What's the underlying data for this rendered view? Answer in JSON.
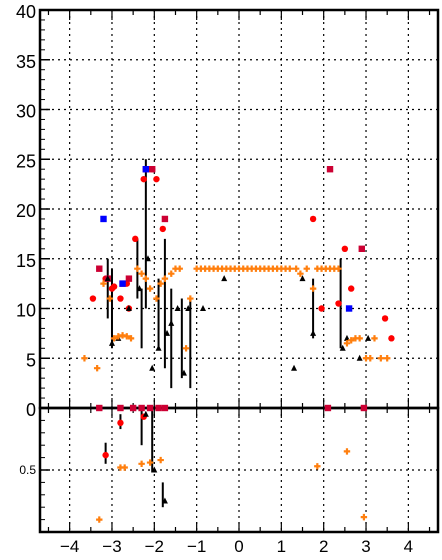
{
  "chart_data": [
    {
      "type": "scatter",
      "panel": "upper",
      "xlim": [
        -4.7,
        4.7
      ],
      "ylim": [
        0,
        40
      ],
      "grid": true,
      "x_ticks": [
        "−4",
        "−3",
        "−2",
        "−1",
        "0",
        "1",
        "2",
        "3",
        "4"
      ],
      "x_tick_values": [
        -4,
        -3,
        -2,
        -1,
        0,
        1,
        2,
        3,
        4
      ],
      "y_ticks": [
        "0",
        "5",
        "10",
        "15",
        "20",
        "25",
        "30",
        "35",
        "40"
      ],
      "y_tick_values": [
        0,
        5,
        10,
        15,
        20,
        25,
        30,
        35,
        40
      ],
      "series": [
        {
          "marker": "circle",
          "color": "#ff0000",
          "points": [
            [
              -3.45,
              11
            ],
            [
              -3.15,
              13
            ],
            [
              -3.0,
              12
            ],
            [
              -2.95,
              12.2
            ],
            [
              -2.8,
              11
            ],
            [
              -2.65,
              12.5
            ],
            [
              -2.6,
              10
            ],
            [
              -2.45,
              17
            ],
            [
              -2.25,
              23
            ],
            [
              -2.05,
              24
            ],
            [
              -1.95,
              23
            ],
            [
              -1.8,
              18
            ],
            [
              1.75,
              19
            ],
            [
              1.95,
              10
            ],
            [
              2.35,
              10.5
            ],
            [
              2.5,
              16
            ],
            [
              2.65,
              12
            ],
            [
              3.45,
              9
            ],
            [
              3.6,
              7
            ]
          ]
        },
        {
          "marker": "square",
          "color": "#cc0033",
          "points": [
            [
              -3.3,
              14
            ],
            [
              -3.1,
              13
            ],
            [
              -2.75,
              12.5
            ],
            [
              -2.6,
              13
            ],
            [
              -2.2,
              24
            ],
            [
              -2.05,
              24
            ],
            [
              -1.75,
              19
            ],
            [
              2.15,
              24
            ],
            [
              2.9,
              16
            ]
          ]
        },
        {
          "marker": "square",
          "color": "#0000ff",
          "points": [
            [
              -3.2,
              19
            ],
            [
              -2.75,
              12.5
            ],
            [
              -2.2,
              24
            ],
            [
              2.6,
              10
            ]
          ]
        },
        {
          "marker": "triangle",
          "color": "#000000",
          "points": [
            [
              -3.1,
              13
            ],
            [
              -3.0,
              6.5
            ],
            [
              -2.85,
              7
            ],
            [
              -2.6,
              10
            ],
            [
              -2.35,
              12
            ],
            [
              -2.15,
              15
            ],
            [
              -2.05,
              4
            ],
            [
              -1.9,
              6
            ],
            [
              -1.7,
              7.5
            ],
            [
              -1.6,
              8.5
            ],
            [
              -1.45,
              10
            ],
            [
              -1.3,
              3.5
            ],
            [
              -1.2,
              10
            ],
            [
              -0.85,
              10
            ],
            [
              -0.35,
              13
            ],
            [
              1.3,
              4
            ],
            [
              1.5,
              13
            ],
            [
              1.75,
              7.5
            ],
            [
              2.45,
              6
            ],
            [
              2.55,
              7
            ],
            [
              2.85,
              5
            ],
            [
              3.05,
              7
            ]
          ]
        },
        {
          "marker": "cross",
          "color": "#ff7f0e",
          "points": [
            [
              -3.65,
              5
            ],
            [
              -3.35,
              4
            ],
            [
              -3.2,
              12.5
            ],
            [
              -3.05,
              11
            ],
            [
              -2.95,
              7
            ],
            [
              -2.85,
              7.2
            ],
            [
              -2.75,
              7.3
            ],
            [
              -2.65,
              7.2
            ],
            [
              -2.55,
              7
            ],
            [
              -2.4,
              14
            ],
            [
              -2.3,
              13.5
            ],
            [
              -2.2,
              13
            ],
            [
              -2.1,
              12
            ],
            [
              -1.95,
              11
            ],
            [
              -1.85,
              12.5
            ],
            [
              -1.75,
              13
            ],
            [
              -1.6,
              13.5
            ],
            [
              -1.5,
              14
            ],
            [
              -1.4,
              14
            ],
            [
              -1.25,
              6
            ],
            [
              -1.15,
              11
            ],
            [
              -1.0,
              14
            ],
            [
              -0.9,
              14
            ],
            [
              -0.8,
              14
            ],
            [
              -0.7,
              14
            ],
            [
              -0.6,
              14
            ],
            [
              -0.5,
              14
            ],
            [
              -0.4,
              14
            ],
            [
              -0.3,
              14
            ],
            [
              -0.2,
              14
            ],
            [
              -0.1,
              14
            ],
            [
              0.0,
              14
            ],
            [
              0.1,
              14
            ],
            [
              0.2,
              14
            ],
            [
              0.3,
              14
            ],
            [
              0.4,
              14
            ],
            [
              0.5,
              14
            ],
            [
              0.6,
              14
            ],
            [
              0.7,
              14
            ],
            [
              0.8,
              14
            ],
            [
              0.9,
              14
            ],
            [
              1.0,
              14
            ],
            [
              1.1,
              14
            ],
            [
              1.2,
              14
            ],
            [
              1.35,
              14
            ],
            [
              1.45,
              13.5
            ],
            [
              1.6,
              14
            ],
            [
              1.75,
              12
            ],
            [
              1.85,
              14
            ],
            [
              1.95,
              14
            ],
            [
              2.05,
              14
            ],
            [
              2.15,
              14
            ],
            [
              2.25,
              14
            ],
            [
              2.35,
              14
            ],
            [
              2.55,
              6.5
            ],
            [
              2.65,
              6.8
            ],
            [
              2.75,
              7
            ],
            [
              2.85,
              7
            ],
            [
              3.0,
              5
            ],
            [
              3.1,
              5
            ],
            [
              3.2,
              7
            ],
            [
              3.35,
              5
            ],
            [
              3.5,
              5
            ]
          ]
        }
      ],
      "error_bars": [
        [
          -3.1,
          9,
          15
        ],
        [
          -3.0,
          6,
          14
        ],
        [
          -2.4,
          11,
          17
        ],
        [
          -2.3,
          6,
          12
        ],
        [
          -2.2,
          10,
          25
        ],
        [
          -1.9,
          6,
          13
        ],
        [
          -1.75,
          4,
          17
        ],
        [
          -1.6,
          2,
          12
        ],
        [
          -1.35,
          3,
          11
        ],
        [
          -1.15,
          2,
          11
        ],
        [
          1.75,
          7,
          13
        ],
        [
          2.4,
          6,
          15
        ]
      ]
    },
    {
      "type": "scatter",
      "panel": "lower",
      "xlim": [
        -4.7,
        4.7
      ],
      "ylim": [
        0,
        1
      ],
      "grid": true,
      "y_ticks": [
        "0.5"
      ],
      "y_tick_values": [
        0.5
      ],
      "series": [
        {
          "marker": "square",
          "color": "#cc0033",
          "points": [
            [
              -3.3,
              1.0
            ],
            [
              -2.8,
              1.0
            ],
            [
              -2.5,
              1.0
            ],
            [
              -2.3,
              1.0
            ],
            [
              -2.1,
              1.0
            ],
            [
              -1.9,
              1.0
            ],
            [
              -1.75,
              1.0
            ],
            [
              2.1,
              1.0
            ],
            [
              2.95,
              1.0
            ]
          ]
        },
        {
          "marker": "circle",
          "color": "#ff0000",
          "points": [
            [
              -3.15,
              0.62
            ],
            [
              -2.8,
              0.88
            ],
            [
              -2.25,
              0.93
            ]
          ]
        },
        {
          "marker": "triangle",
          "color": "#000000",
          "points": [
            [
              -2.2,
              0.95
            ],
            [
              -2.0,
              0.5
            ],
            [
              -1.75,
              0.25
            ]
          ]
        },
        {
          "marker": "cross",
          "color": "#ff7f0e",
          "points": [
            [
              -3.3,
              0.1
            ],
            [
              -2.8,
              0.52
            ],
            [
              -2.7,
              0.52
            ],
            [
              -2.3,
              0.55
            ],
            [
              -2.1,
              0.56
            ],
            [
              -1.85,
              0.58
            ],
            [
              1.85,
              0.53
            ],
            [
              2.55,
              0.65
            ],
            [
              2.95,
              0.12
            ]
          ]
        }
      ],
      "error_bars": [
        [
          -3.15,
          0.55,
          0.72
        ],
        [
          -2.8,
          0.83,
          0.95
        ],
        [
          -2.3,
          0.7,
          1.0
        ],
        [
          -2.05,
          0.48,
          1.0
        ],
        [
          -1.8,
          0.2,
          0.4
        ]
      ]
    }
  ]
}
